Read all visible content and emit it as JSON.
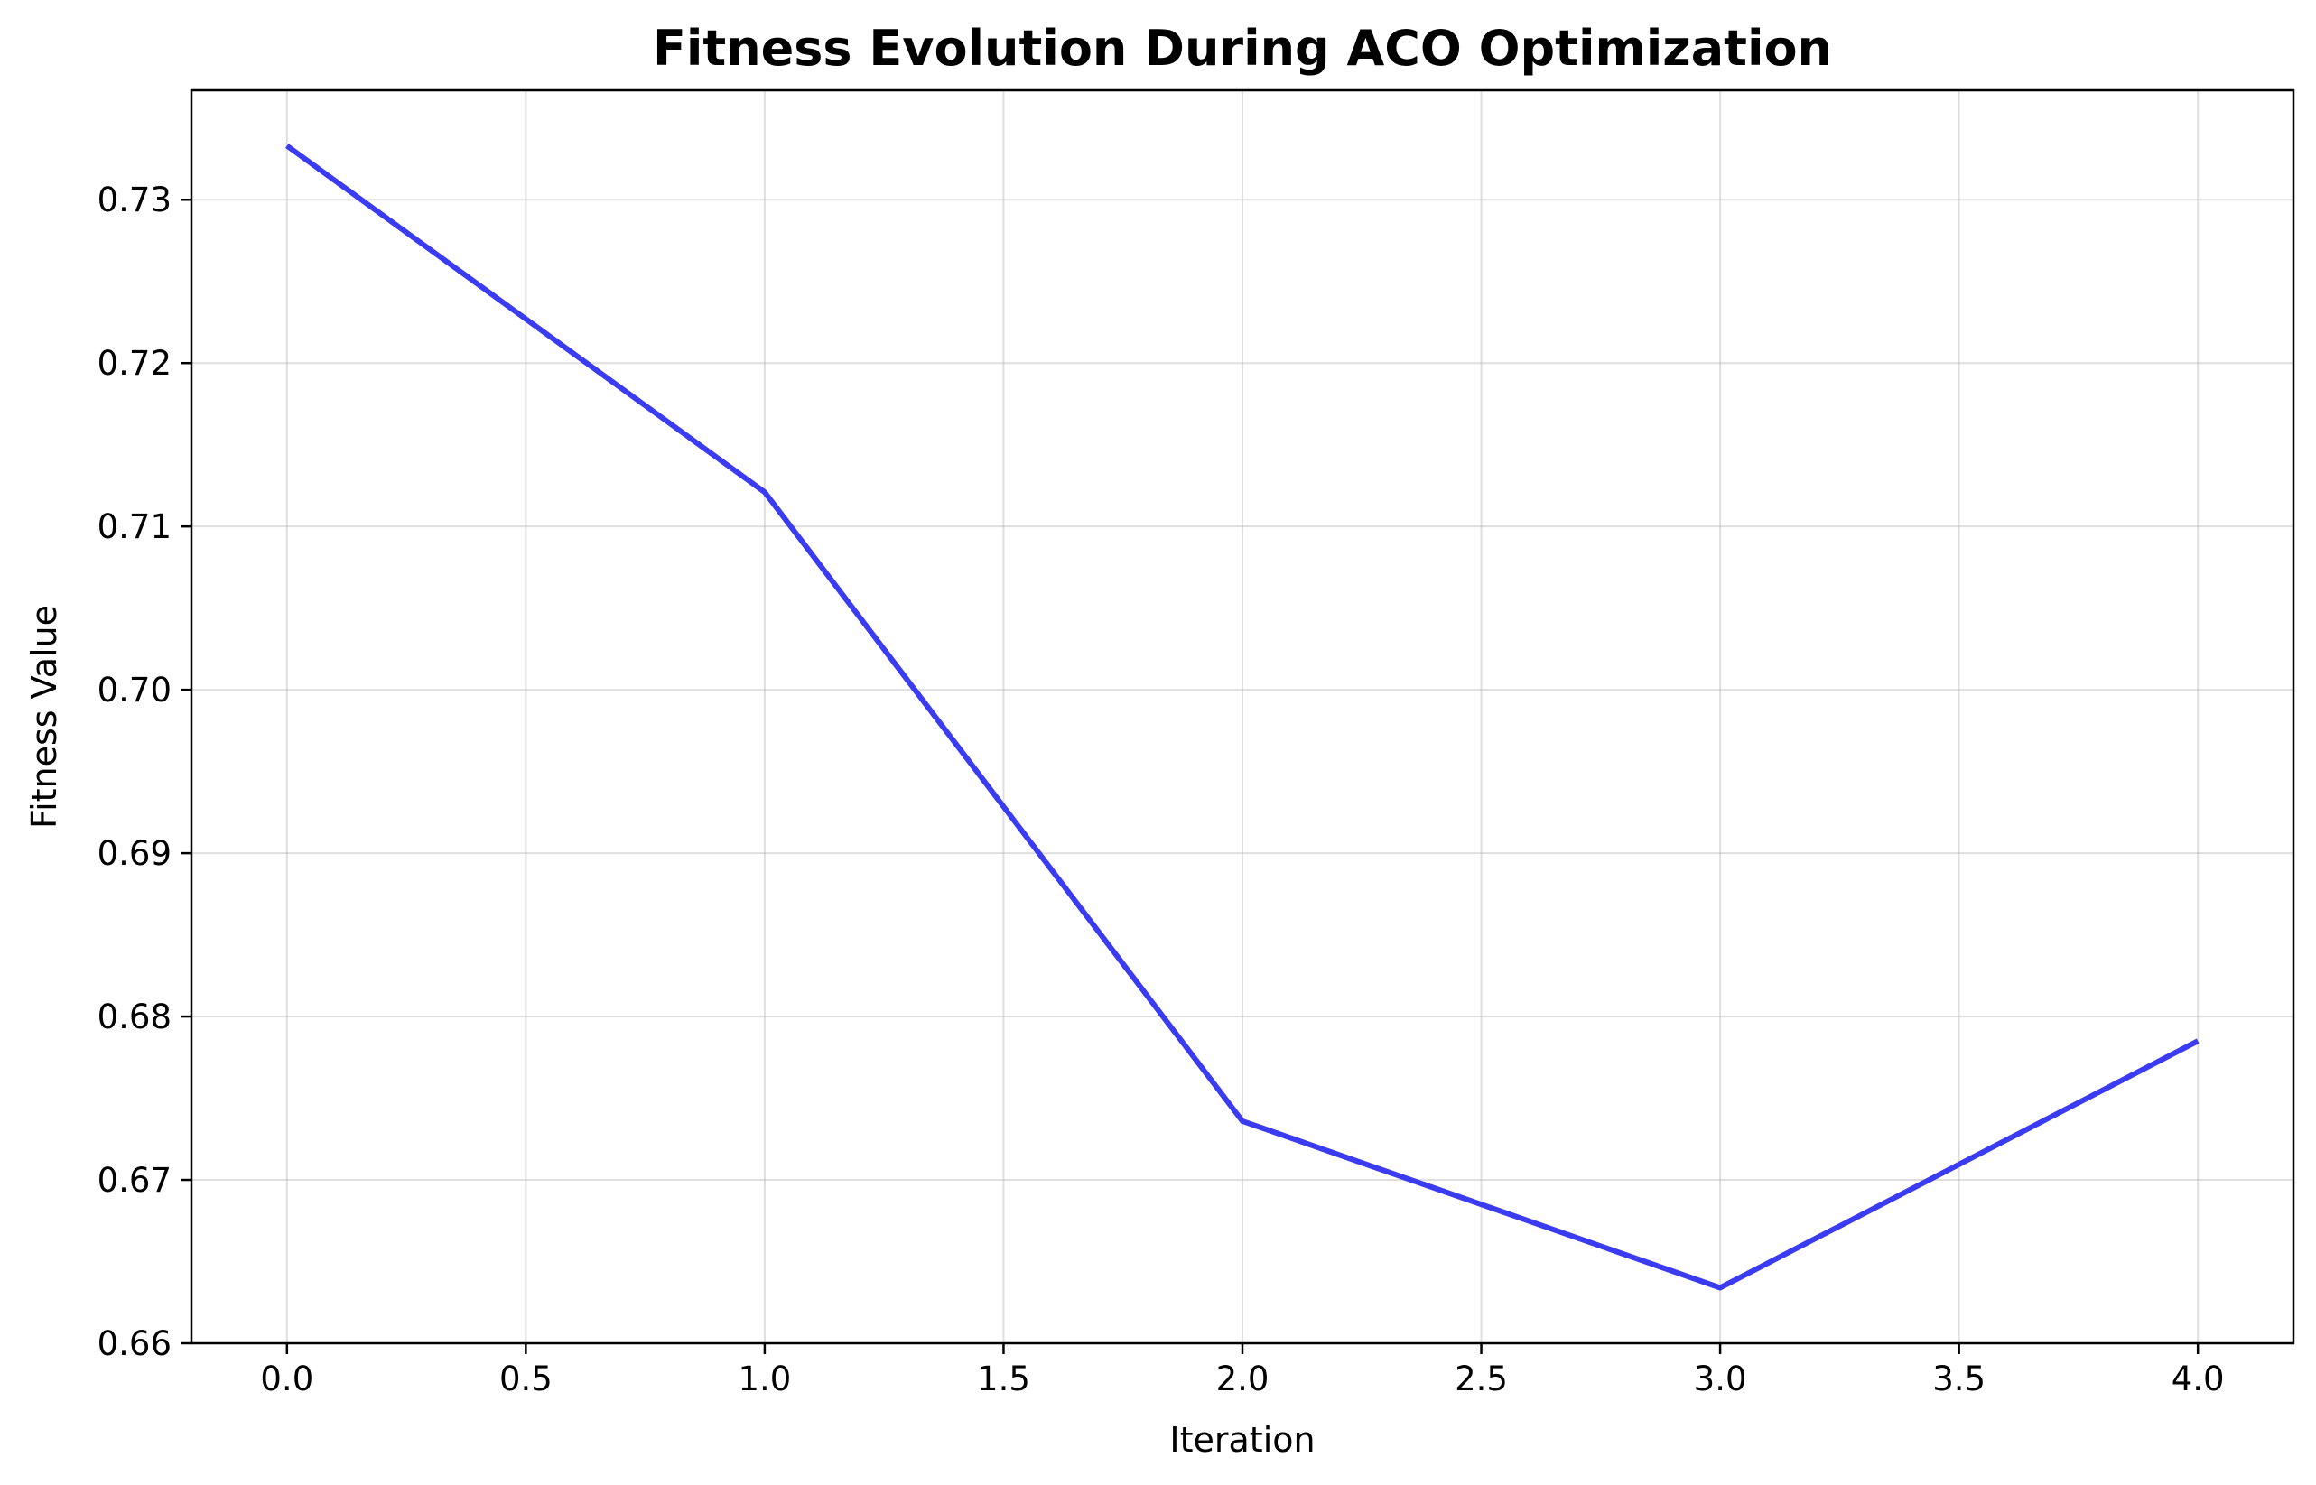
{
  "chart_data": {
    "type": "line",
    "title": "Fitness Evolution During ACO Optimization",
    "xlabel": "Iteration",
    "ylabel": "Fitness Value",
    "xlim": [
      -0.2,
      4.2
    ],
    "ylim": [
      0.66,
      0.7367
    ],
    "xticks": [
      0.0,
      0.5,
      1.0,
      1.5,
      2.0,
      2.5,
      3.0,
      3.5,
      4.0
    ],
    "yticks": [
      0.66,
      0.67,
      0.68,
      0.69,
      0.7,
      0.71,
      0.72,
      0.73
    ],
    "x_decimals": 1,
    "y_decimals": 2,
    "grid": true,
    "series": [
      {
        "color": "#3030f0",
        "x": [
          0,
          1,
          2,
          3,
          4
        ],
        "y": [
          0.7333,
          0.7121,
          0.6736,
          0.6634,
          0.6785
        ]
      }
    ]
  }
}
